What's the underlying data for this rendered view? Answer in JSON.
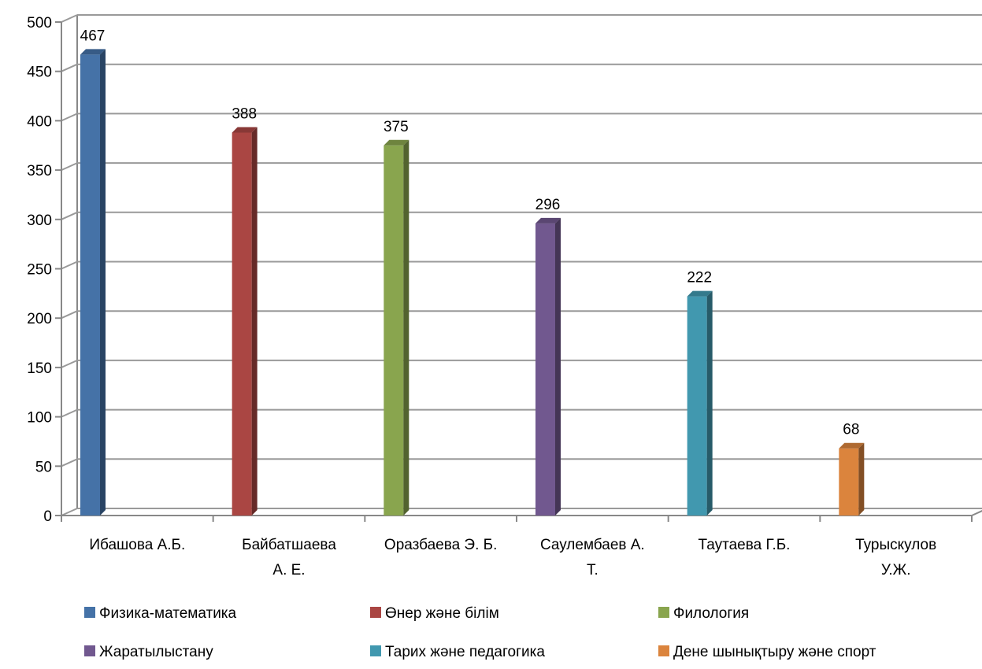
{
  "chart_data": {
    "type": "bar",
    "title": "",
    "xlabel": "",
    "ylabel": "",
    "ylim": [
      0,
      500
    ],
    "ytick_step": 50,
    "grid": true,
    "three_d": true,
    "legend_position": "bottom",
    "categories": [
      [
        "Ибашова А.Б."
      ],
      [
        "Байбатшаева",
        "А. Е."
      ],
      [
        "Оразбаева Э. Б."
      ],
      [
        "Саулембаев А.",
        "Т."
      ],
      [
        "Таутаева Г.Б."
      ],
      [
        "Турыскулов",
        "У.Ж."
      ]
    ],
    "series": [
      {
        "name": "Физика-математика",
        "color": "#4572A7",
        "values": [
          467,
          null,
          null,
          null,
          null,
          null
        ]
      },
      {
        "name": "Өнер және білім",
        "color": "#AA4643",
        "values": [
          null,
          388,
          null,
          null,
          null,
          null
        ]
      },
      {
        "name": "Филология",
        "color": "#89A54E",
        "values": [
          null,
          null,
          375,
          null,
          null,
          null
        ]
      },
      {
        "name": "Жаратылыстану",
        "color": "#71588F",
        "values": [
          null,
          null,
          null,
          296,
          null,
          null
        ]
      },
      {
        "name": "Тарих және педагогика",
        "color": "#4198AF",
        "values": [
          null,
          null,
          null,
          null,
          222,
          null
        ]
      },
      {
        "name": "Дене шынықтыру және спорт",
        "color": "#DB843D",
        "values": [
          null,
          null,
          null,
          null,
          null,
          68
        ]
      }
    ]
  }
}
